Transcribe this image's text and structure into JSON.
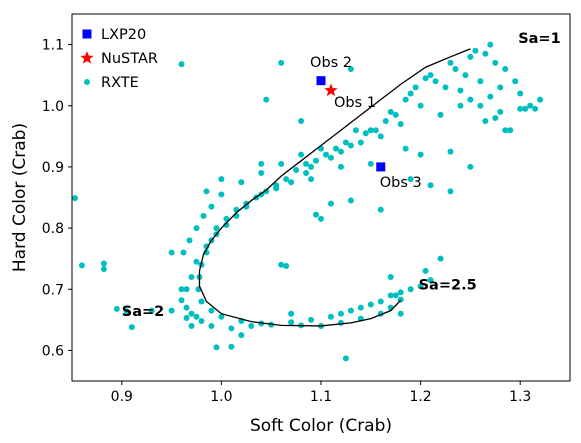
{
  "chart_data": {
    "type": "scatter",
    "xlabel": "Soft Color (Crab)",
    "ylabel": "Hard Color (Crab)",
    "xlim": [
      0.85,
      1.35
    ],
    "ylim": [
      0.55,
      1.15
    ],
    "xticks": [
      0.9,
      1.0,
      1.1,
      1.2,
      1.3
    ],
    "yticks": [
      0.6,
      0.7,
      0.8,
      0.9,
      1.0,
      1.1
    ],
    "x_tick_labels": [
      "0.9",
      "1.0",
      "1.1",
      "1.2",
      "1.3"
    ],
    "y_tick_labels": [
      "0.6",
      "0.7",
      "0.8",
      "0.9",
      "1.0",
      "1.1"
    ],
    "legend_position": "upper-left",
    "legend": [
      {
        "label": "LXP20",
        "marker": "square",
        "color": "#0000ff"
      },
      {
        "label": "NuSTAR",
        "marker": "star",
        "color": "#ff0000"
      },
      {
        "label": "RXTE",
        "marker": "circle",
        "color": "#00bfbf"
      }
    ],
    "series": [
      {
        "name": "LXP20",
        "marker": "square",
        "color": "#0000ff",
        "points": [
          [
            1.1,
            1.041
          ],
          [
            1.16,
            0.9
          ]
        ]
      },
      {
        "name": "NuSTAR",
        "marker": "star",
        "color": "#ff0000",
        "points": [
          [
            1.11,
            1.025
          ]
        ]
      },
      {
        "name": "RXTE",
        "marker": "circle",
        "color": "#00bfbf",
        "points": [
          [
            0.853,
            0.849
          ],
          [
            0.86,
            0.739
          ],
          [
            0.882,
            0.742
          ],
          [
            0.882,
            0.733
          ],
          [
            0.895,
            0.668
          ],
          [
            0.905,
            0.664
          ],
          [
            0.91,
            0.638
          ],
          [
            0.93,
            0.665
          ],
          [
            0.95,
            0.665
          ],
          [
            0.96,
            1.068
          ],
          [
            0.965,
            0.653
          ],
          [
            0.97,
            0.64
          ],
          [
            0.975,
            0.655
          ],
          [
            0.96,
            0.7
          ],
          [
            0.95,
            0.76
          ],
          [
            0.985,
            0.86
          ],
          [
            1.0,
            0.88
          ],
          [
            0.995,
            0.605
          ],
          [
            1.01,
            0.606
          ],
          [
            1.02,
            0.625
          ],
          [
            1.04,
            0.905
          ],
          [
            1.045,
            1.01
          ],
          [
            1.06,
            0.74
          ],
          [
            1.065,
            0.738
          ],
          [
            1.07,
            0.66
          ],
          [
            1.08,
            0.975
          ],
          [
            1.095,
            0.822
          ],
          [
            1.1,
            0.815
          ],
          [
            1.085,
            0.89
          ],
          [
            1.09,
            0.88
          ],
          [
            1.11,
            0.84
          ],
          [
            1.12,
            0.9
          ],
          [
            1.125,
            0.587
          ],
          [
            1.13,
            0.845
          ],
          [
            1.15,
            0.905
          ],
          [
            1.16,
            0.83
          ],
          [
            1.17,
            0.72
          ],
          [
            1.175,
            0.69
          ],
          [
            1.18,
            0.66
          ],
          [
            1.185,
            0.93
          ],
          [
            1.19,
            0.88
          ],
          [
            1.2,
            0.92
          ],
          [
            1.205,
            0.73
          ],
          [
            1.21,
            0.87
          ],
          [
            1.22,
            0.985
          ],
          [
            1.23,
            0.86
          ],
          [
            1.24,
            1.0
          ],
          [
            1.25,
            1.08
          ],
          [
            1.26,
            1.0
          ],
          [
            1.27,
            1.1
          ],
          [
            1.28,
            0.99
          ],
          [
            1.285,
            0.96
          ],
          [
            1.29,
            0.96
          ],
          [
            1.3,
            0.995
          ],
          [
            1.31,
            1.0
          ],
          [
            1.315,
            0.995
          ],
          [
            1.32,
            1.01
          ],
          [
            1.3,
            1.02
          ],
          [
            1.305,
            0.995
          ],
          [
            1.275,
            0.98
          ],
          [
            1.265,
            0.975
          ],
          [
            1.245,
            1.05
          ],
          [
            1.235,
            1.06
          ],
          [
            1.225,
            1.03
          ],
          [
            1.215,
            1.04
          ],
          [
            1.205,
            1.045
          ],
          [
            1.195,
            1.03
          ],
          [
            1.185,
            1.01
          ],
          [
            1.175,
            0.985
          ],
          [
            1.165,
            0.975
          ],
          [
            1.155,
            0.96
          ],
          [
            1.145,
            0.955
          ],
          [
            1.135,
            0.96
          ],
          [
            1.125,
            0.94
          ],
          [
            1.115,
            0.93
          ],
          [
            1.105,
            0.92
          ],
          [
            1.095,
            0.91
          ],
          [
            1.085,
            0.905
          ],
          [
            1.075,
            0.895
          ],
          [
            1.065,
            0.88
          ],
          [
            1.055,
            0.87
          ],
          [
            1.045,
            0.86
          ],
          [
            1.035,
            0.85
          ],
          [
            1.025,
            0.84
          ],
          [
            1.015,
            0.83
          ],
          [
            1.005,
            0.815
          ],
          [
            0.995,
            0.8
          ],
          [
            0.99,
            0.78
          ],
          [
            0.985,
            0.76
          ],
          [
            0.98,
            0.74
          ],
          [
            0.978,
            0.72
          ],
          [
            0.977,
            0.7
          ],
          [
            0.98,
            0.68
          ],
          [
            0.99,
            0.665
          ],
          [
            1.0,
            0.655
          ],
          [
            1.02,
            0.648
          ],
          [
            1.05,
            0.642
          ],
          [
            1.08,
            0.641
          ],
          [
            1.1,
            0.64
          ],
          [
            1.12,
            0.645
          ],
          [
            1.14,
            0.652
          ],
          [
            1.16,
            0.66
          ],
          [
            1.17,
            0.67
          ],
          [
            1.18,
            0.683
          ],
          [
            1.06,
            1.07
          ],
          [
            1.13,
            1.06
          ],
          [
            1.25,
            0.9
          ],
          [
            1.23,
            0.925
          ],
          [
            1.22,
            0.75
          ],
          [
            1.21,
            0.715
          ],
          [
            1.2,
            0.705
          ],
          [
            1.19,
            0.7
          ],
          [
            1.18,
            0.695
          ],
          [
            1.17,
            0.69
          ],
          [
            1.16,
            0.68
          ],
          [
            1.15,
            0.675
          ],
          [
            1.14,
            0.67
          ],
          [
            1.13,
            0.665
          ],
          [
            1.12,
            0.66
          ],
          [
            1.11,
            0.655
          ],
          [
            1.09,
            0.65
          ],
          [
            1.07,
            0.646
          ],
          [
            1.04,
            0.644
          ],
          [
            1.03,
            0.64
          ],
          [
            1.01,
            0.636
          ],
          [
            0.99,
            0.64
          ],
          [
            0.98,
            0.648
          ],
          [
            0.97,
            0.66
          ],
          [
            0.965,
            0.67
          ],
          [
            0.96,
            0.682
          ],
          [
            0.965,
            0.7
          ],
          [
            0.97,
            0.72
          ],
          [
            0.975,
            0.745
          ],
          [
            0.985,
            0.77
          ],
          [
            0.995,
            0.79
          ],
          [
            1.005,
            0.805
          ],
          [
            1.015,
            0.82
          ],
          [
            1.025,
            0.835
          ],
          [
            1.04,
            0.855
          ],
          [
            1.055,
            0.865
          ],
          [
            1.07,
            0.875
          ],
          [
            1.09,
            0.9
          ],
          [
            1.11,
            0.915
          ],
          [
            1.13,
            0.935
          ],
          [
            1.15,
            0.96
          ],
          [
            1.17,
            0.99
          ],
          [
            1.19,
            1.02
          ],
          [
            1.21,
            1.05
          ],
          [
            1.23,
            1.07
          ],
          [
            1.255,
            1.09
          ],
          [
            1.265,
            1.085
          ],
          [
            1.275,
            1.07
          ],
          [
            1.285,
            1.06
          ],
          [
            1.295,
            1.04
          ],
          [
            1.24,
            1.025
          ],
          [
            1.26,
            1.04
          ],
          [
            1.28,
            1.03
          ],
          [
            1.25,
            1.01
          ],
          [
            1.27,
            1.015
          ],
          [
            1.2,
            1.0
          ],
          [
            1.18,
            0.97
          ],
          [
            1.16,
            0.95
          ],
          [
            1.14,
            0.94
          ],
          [
            1.12,
            0.925
          ],
          [
            1.1,
            0.93
          ],
          [
            1.08,
            0.92
          ],
          [
            1.06,
            0.905
          ],
          [
            1.04,
            0.89
          ],
          [
            1.02,
            0.875
          ],
          [
            1.0,
            0.855
          ],
          [
            0.99,
            0.835
          ],
          [
            0.982,
            0.82
          ],
          [
            0.975,
            0.8
          ],
          [
            0.968,
            0.78
          ],
          [
            0.962,
            0.76
          ]
        ]
      }
    ],
    "curve": {
      "color": "#000000",
      "points": [
        [
          1.25,
          1.093
        ],
        [
          1.23,
          1.08
        ],
        [
          1.205,
          1.063
        ],
        [
          1.18,
          1.035
        ],
        [
          1.16,
          1.01
        ],
        [
          1.14,
          0.985
        ],
        [
          1.12,
          0.96
        ],
        [
          1.1,
          0.935
        ],
        [
          1.08,
          0.91
        ],
        [
          1.06,
          0.885
        ],
        [
          1.045,
          0.862
        ],
        [
          1.03,
          0.845
        ],
        [
          1.015,
          0.825
        ],
        [
          1.0,
          0.8
        ],
        [
          0.99,
          0.78
        ],
        [
          0.982,
          0.757
        ],
        [
          0.978,
          0.73
        ],
        [
          0.978,
          0.705
        ],
        [
          0.985,
          0.68
        ],
        [
          1.0,
          0.66
        ],
        [
          1.03,
          0.647
        ],
        [
          1.06,
          0.641
        ],
        [
          1.1,
          0.64
        ],
        [
          1.13,
          0.645
        ],
        [
          1.15,
          0.652
        ],
        [
          1.17,
          0.665
        ],
        [
          1.18,
          0.682
        ]
      ]
    },
    "annotations": [
      {
        "text": "Obs 2",
        "x": 1.089,
        "y": 1.063,
        "style": "normal"
      },
      {
        "text": "Obs 1",
        "x": 1.113,
        "y": 0.998,
        "style": "normal"
      },
      {
        "text": "Obs 3",
        "x": 1.159,
        "y": 0.867,
        "style": "normal"
      },
      {
        "text": "Sa=1",
        "x": 1.298,
        "y": 1.103,
        "style": "bold"
      },
      {
        "text": "Sa=2.5",
        "x": 1.198,
        "y": 0.7,
        "style": "bold"
      },
      {
        "text": "Sa=2",
        "x": 0.9,
        "y": 0.656,
        "style": "bold"
      }
    ]
  }
}
